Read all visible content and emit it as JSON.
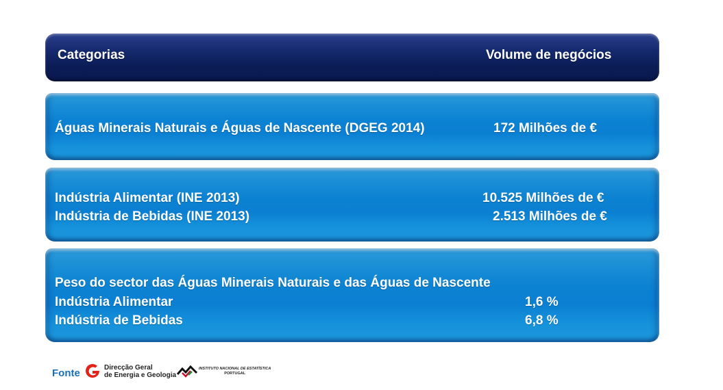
{
  "header": {
    "col1": "Categorias",
    "col2": "Volume de negócios"
  },
  "row1": {
    "label": "Águas Minerais Naturais e Águas de Nascente  (DGEG 2014)",
    "value": "172 Milhões de €"
  },
  "row2": {
    "items": [
      {
        "label": "Indústria Alimentar (INE 2013)",
        "value": "10.525 Milhões de €"
      },
      {
        "label": "Indústria de Bebidas (INE 2013)",
        "value": "2.513 Milhões de €"
      }
    ]
  },
  "row3": {
    "title": "Peso do sector das Águas Minerais Naturais e das Águas de Nascente",
    "items": [
      {
        "label": "Indústria Alimentar",
        "value": "1,6 %"
      },
      {
        "label": "Indústria de Bebidas",
        "value": "6,8 %"
      }
    ]
  },
  "footer": {
    "source_label": "Fonte",
    "dgeg_line1": "Direcção Geral",
    "dgeg_line2": "de Energia e Geologia",
    "ine_line1": "INSTITUTO NACIONAL DE ESTATÍSTICA",
    "ine_line2": "PORTUGAL"
  },
  "colors": {
    "header_band": "#0b1c55",
    "row_band": "#0c82d2",
    "text": "#ffffff",
    "source_label": "#1b6fb8",
    "dgeg_logo": "#e2231a"
  }
}
